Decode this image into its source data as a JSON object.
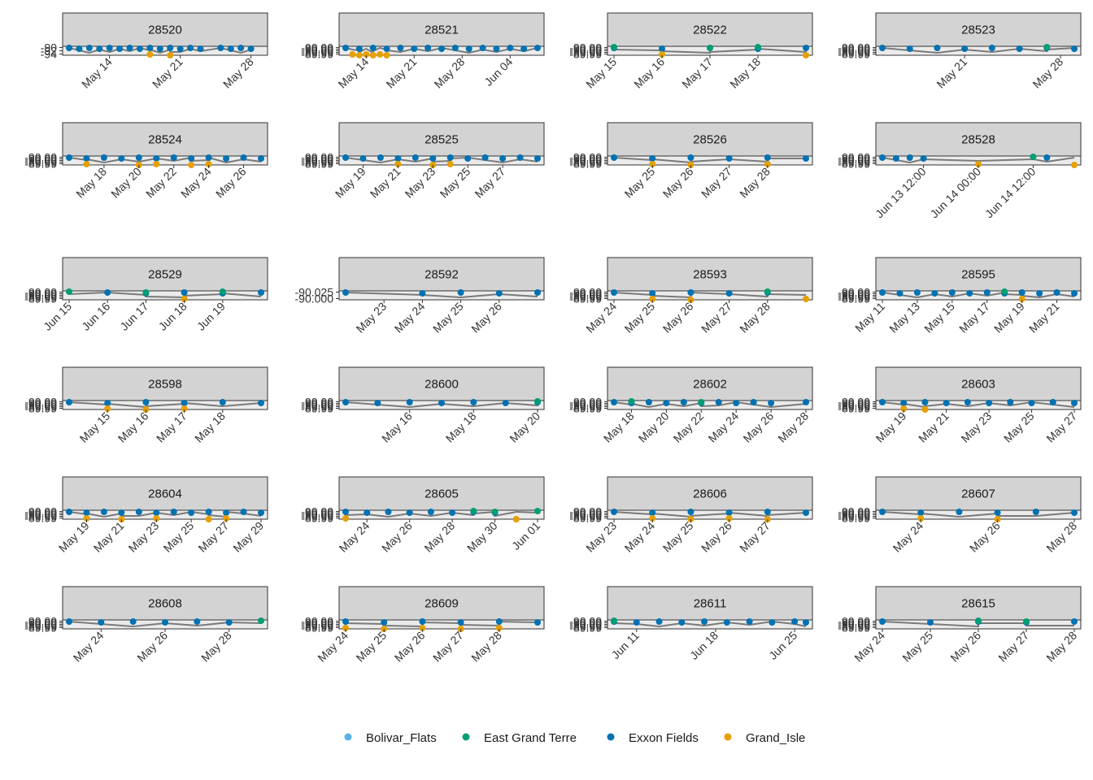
{
  "chart_data": {
    "type": "line",
    "layout": "facet_wrap",
    "y_tick_labels": [
      "-90.00",
      "-90.00",
      "-90.00",
      "-89.99",
      "-89.99"
    ],
    "colors": {
      "Bolivar_Flats": "#56B4E9",
      "East Grand Terre": "#009E73",
      "Exxon Fields": "#0072B2",
      "Grand_Isle": "#E69F00",
      "path": "#666666",
      "strip_bg": "#d3d3d3",
      "panel_bg": "#ebebeb"
    },
    "legend": {
      "position": "bottom",
      "entries": [
        "Bolivar_Flats",
        "East Grand Terre",
        "Exxon Fields",
        "Grand_Isle"
      ]
    },
    "panels": [
      {
        "id": "28520",
        "xlim": [
          "May 10",
          "May 29"
        ],
        "x_ticks": [
          "May 14",
          "May 21",
          "May 28"
        ],
        "y_ticks": [
          "-90",
          "-92",
          "-94"
        ],
        "series": [
          {
            "site": "Exxon Fields",
            "x": [
              "May 10",
              "May 11",
              "May 12",
              "May 13",
              "May 14",
              "May 15",
              "May 16",
              "May 17",
              "May 18",
              "May 19",
              "May 20",
              "May 21",
              "May 22",
              "May 23",
              "May 25",
              "May 26",
              "May 27",
              "May 28"
            ]
          },
          {
            "site": "Grand_Isle",
            "x": [
              "May 18",
              "May 20"
            ]
          }
        ]
      },
      {
        "id": "28521",
        "xlim": [
          "May 11",
          "Jun 08"
        ],
        "x_ticks": [
          "May 14",
          "May 21",
          "May 28",
          "Jun 04"
        ],
        "series": [
          {
            "site": "Exxon Fields",
            "x": [
              "May 11",
              "May 13",
              "May 15",
              "May 17",
              "May 19",
              "May 21",
              "May 23",
              "May 25",
              "May 27",
              "May 29",
              "May 31",
              "Jun 02",
              "Jun 04",
              "Jun 06",
              "Jun 08"
            ]
          },
          {
            "site": "Grand_Isle",
            "x": [
              "May 12",
              "May 13",
              "May 14",
              "May 15",
              "May 16",
              "May 17"
            ]
          }
        ]
      },
      {
        "id": "28522",
        "xlim": [
          "May 15",
          "May 19"
        ],
        "x_ticks": [
          "May 15",
          "May 16",
          "May 17",
          "May 18"
        ],
        "series": [
          {
            "site": "Exxon Fields",
            "x": [
              "May 15",
              "May 16",
              "May 17",
              "May 18",
              "May 19"
            ]
          },
          {
            "site": "East Grand Terre",
            "x": [
              "May 15",
              "May 17",
              "May 18"
            ]
          },
          {
            "site": "Grand_Isle",
            "x": [
              "May 16",
              "May 19"
            ]
          }
        ]
      },
      {
        "id": "28523",
        "xlim": [
          "May 15",
          "May 29"
        ],
        "x_ticks": [
          "May 21",
          "May 28"
        ],
        "series": [
          {
            "site": "Exxon Fields",
            "x": [
              "May 15",
              "May 17",
              "May 19",
              "May 21",
              "May 23",
              "May 25",
              "May 27",
              "May 29"
            ]
          },
          {
            "site": "East Grand Terre",
            "x": [
              "May 27"
            ]
          }
        ]
      },
      {
        "id": "28524",
        "xlim": [
          "May 16",
          "May 27"
        ],
        "x_ticks": [
          "May 18",
          "May 20",
          "May 22",
          "May 24",
          "May 26"
        ],
        "series": [
          {
            "site": "Exxon Fields",
            "x": [
              "May 16",
              "May 17",
              "May 18",
              "May 19",
              "May 20",
              "May 21",
              "May 22",
              "May 23",
              "May 24",
              "May 25",
              "May 26",
              "May 27"
            ]
          },
          {
            "site": "Grand_Isle",
            "x": [
              "May 17",
              "May 20",
              "May 21",
              "May 23",
              "May 24"
            ]
          }
        ]
      },
      {
        "id": "28525",
        "xlim": [
          "May 18",
          "May 29"
        ],
        "x_ticks": [
          "May 19",
          "May 21",
          "May 23",
          "May 25",
          "May 27"
        ],
        "series": [
          {
            "site": "Exxon Fields",
            "x": [
              "May 18",
              "May 19",
              "May 20",
              "May 21",
              "May 22",
              "May 23",
              "May 24",
              "May 25",
              "May 26",
              "May 27",
              "May 28",
              "May 29"
            ]
          },
          {
            "site": "Grand_Isle",
            "x": [
              "May 21",
              "May 23",
              "May 24"
            ]
          }
        ]
      },
      {
        "id": "28526",
        "xlim": [
          "May 24",
          "May 29"
        ],
        "x_ticks": [
          "May 25",
          "May 26",
          "May 27",
          "May 28"
        ],
        "series": [
          {
            "site": "Exxon Fields",
            "x": [
              "May 24",
              "May 25",
              "May 26",
              "May 27",
              "May 28",
              "May 29"
            ]
          },
          {
            "site": "Grand_Isle",
            "x": [
              "May 25",
              "May 26",
              "May 28"
            ]
          }
        ]
      },
      {
        "id": "28528",
        "xlim": [
          "Jun 13 03:00",
          "Jun 14 21:00"
        ],
        "x_ticks": [
          "Jun 13 12:00",
          "Jun 14 00:00",
          "Jun 14 12:00"
        ],
        "series": [
          {
            "site": "Exxon Fields",
            "x": [
              "Jun 13 03:00",
              "Jun 13 06:00",
              "Jun 13 09:00",
              "Jun 13 12:00",
              "Jun 14 15:00"
            ]
          },
          {
            "site": "East Grand Terre",
            "x": [
              "Jun 14 12:00"
            ]
          },
          {
            "site": "Grand_Isle",
            "x": [
              "Jun 14 00:00",
              "Jun 14 21:00"
            ]
          }
        ]
      },
      {
        "id": "28529",
        "xlim": [
          "Jun 15",
          "Jun 20"
        ],
        "x_ticks": [
          "Jun 15",
          "Jun 16",
          "Jun 17",
          "Jun 18",
          "Jun 19"
        ],
        "series": [
          {
            "site": "Exxon Fields",
            "x": [
              "Jun 16",
              "Jun 17",
              "Jun 18",
              "Jun 19",
              "Jun 20"
            ]
          },
          {
            "site": "East Grand Terre",
            "x": [
              "Jun 15",
              "Jun 17",
              "Jun 19"
            ]
          },
          {
            "site": "Grand_Isle",
            "x": [
              "Jun 18"
            ]
          }
        ]
      },
      {
        "id": "28592",
        "xlim": [
          "May 22",
          "May 27"
        ],
        "x_ticks": [
          "May 23",
          "May 24",
          "May 25",
          "May 26"
        ],
        "y_ticks": [
          "-90.025",
          "-90.000"
        ],
        "series": [
          {
            "site": "Exxon Fields",
            "x": [
              "May 22",
              "May 24",
              "May 25",
              "May 26",
              "May 27"
            ]
          }
        ]
      },
      {
        "id": "28593",
        "xlim": [
          "May 24",
          "May 29"
        ],
        "x_ticks": [
          "May 24",
          "May 25",
          "May 26",
          "May 27",
          "May 28"
        ],
        "series": [
          {
            "site": "Exxon Fields",
            "x": [
              "May 24",
              "May 25",
              "May 26",
              "May 27",
              "May 28"
            ]
          },
          {
            "site": "East Grand Terre",
            "x": [
              "May 28"
            ]
          },
          {
            "site": "Grand_Isle",
            "x": [
              "May 25",
              "May 26",
              "May 29"
            ]
          }
        ]
      },
      {
        "id": "28595",
        "xlim": [
          "May 11",
          "May 22"
        ],
        "x_ticks": [
          "May 11",
          "May 13",
          "May 15",
          "May 17",
          "May 19",
          "May 21"
        ],
        "series": [
          {
            "site": "Exxon Fields",
            "x": [
              "May 11",
              "May 12",
              "May 13",
              "May 14",
              "May 15",
              "May 16",
              "May 17",
              "May 18",
              "May 19",
              "May 20",
              "May 21",
              "May 22"
            ]
          },
          {
            "site": "East Grand Terre",
            "x": [
              "May 18"
            ]
          },
          {
            "site": "Grand_Isle",
            "x": [
              "May 19"
            ]
          }
        ]
      },
      {
        "id": "28598",
        "xlim": [
          "May 14",
          "May 19"
        ],
        "x_ticks": [
          "May 15",
          "May 16",
          "May 17",
          "May 18"
        ],
        "series": [
          {
            "site": "Exxon Fields",
            "x": [
              "May 14",
              "May 15",
              "May 16",
              "May 17",
              "May 18",
              "May 19"
            ]
          },
          {
            "site": "Grand_Isle",
            "x": [
              "May 15",
              "May 16",
              "May 17"
            ]
          }
        ]
      },
      {
        "id": "28600",
        "xlim": [
          "May 14",
          "May 20"
        ],
        "x_ticks": [
          "May 16",
          "May 18",
          "May 20"
        ],
        "series": [
          {
            "site": "Exxon Fields",
            "x": [
              "May 14",
              "May 15",
              "May 16",
              "May 17",
              "May 18",
              "May 19",
              "May 20"
            ]
          },
          {
            "site": "East Grand Terre",
            "x": [
              "May 20"
            ]
          }
        ]
      },
      {
        "id": "28602",
        "xlim": [
          "May 17",
          "May 28"
        ],
        "x_ticks": [
          "May 18",
          "May 20",
          "May 22",
          "May 24",
          "May 26",
          "May 28"
        ],
        "series": [
          {
            "site": "Exxon Fields",
            "x": [
              "May 17",
              "May 18",
              "May 19",
              "May 20",
              "May 21",
              "May 22",
              "May 23",
              "May 24",
              "May 25",
              "May 26",
              "May 28"
            ]
          },
          {
            "site": "East Grand Terre",
            "x": [
              "May 18",
              "May 22"
            ]
          }
        ]
      },
      {
        "id": "28603",
        "xlim": [
          "May 18",
          "May 27"
        ],
        "x_ticks": [
          "May 19",
          "May 21",
          "May 23",
          "May 25",
          "May 27"
        ],
        "series": [
          {
            "site": "Exxon Fields",
            "x": [
              "May 18",
              "May 19",
              "May 20",
              "May 21",
              "May 22",
              "May 23",
              "May 24",
              "May 25",
              "May 26",
              "May 27"
            ]
          },
          {
            "site": "Grand_Isle",
            "x": [
              "May 19",
              "May 20"
            ]
          }
        ]
      },
      {
        "id": "28604",
        "xlim": [
          "May 18",
          "May 29"
        ],
        "x_ticks": [
          "May 19",
          "May 21",
          "May 23",
          "May 25",
          "May 27",
          "May 29"
        ],
        "series": [
          {
            "site": "Exxon Fields",
            "x": [
              "May 18",
              "May 19",
              "May 20",
              "May 21",
              "May 22",
              "May 23",
              "May 24",
              "May 25",
              "May 26",
              "May 27",
              "May 28",
              "May 29"
            ]
          },
          {
            "site": "Grand_Isle",
            "x": [
              "May 19",
              "May 21",
              "May 23",
              "May 26",
              "May 27"
            ]
          }
        ]
      },
      {
        "id": "28605",
        "xlim": [
          "May 23",
          "Jun 01"
        ],
        "x_ticks": [
          "May 24",
          "May 26",
          "May 28",
          "May 30",
          "Jun 01"
        ],
        "series": [
          {
            "site": "Exxon Fields",
            "x": [
              "May 23",
              "May 24",
              "May 25",
              "May 26",
              "May 27",
              "May 28",
              "May 29",
              "May 30"
            ]
          },
          {
            "site": "East Grand Terre",
            "x": [
              "May 29",
              "May 30",
              "Jun 01"
            ]
          },
          {
            "site": "Grand_Isle",
            "x": [
              "May 23",
              "May 31"
            ]
          }
        ]
      },
      {
        "id": "28606",
        "xlim": [
          "May 23",
          "May 28"
        ],
        "x_ticks": [
          "May 23",
          "May 24",
          "May 25",
          "May 26",
          "May 27"
        ],
        "series": [
          {
            "site": "Exxon Fields",
            "x": [
              "May 23",
              "May 24",
              "May 25",
              "May 26",
              "May 27",
              "May 28"
            ]
          },
          {
            "site": "Grand_Isle",
            "x": [
              "May 24",
              "May 25",
              "May 26",
              "May 27"
            ]
          }
        ]
      },
      {
        "id": "28607",
        "xlim": [
          "May 23",
          "May 28"
        ],
        "x_ticks": [
          "May 24",
          "May 26",
          "May 28"
        ],
        "series": [
          {
            "site": "Exxon Fields",
            "x": [
              "May 23",
              "May 24",
              "May 25",
              "May 26",
              "May 27",
              "May 28"
            ]
          },
          {
            "site": "Grand_Isle",
            "x": [
              "May 24",
              "May 26"
            ]
          }
        ]
      },
      {
        "id": "28608",
        "xlim": [
          "May 23",
          "May 29"
        ],
        "x_ticks": [
          "May 24",
          "May 26",
          "May 28"
        ],
        "series": [
          {
            "site": "Exxon Fields",
            "x": [
              "May 23",
              "May 24",
              "May 25",
              "May 26",
              "May 27",
              "May 28"
            ]
          },
          {
            "site": "East Grand Terre",
            "x": [
              "May 29"
            ]
          }
        ]
      },
      {
        "id": "28609",
        "xlim": [
          "May 24",
          "May 29"
        ],
        "x_ticks": [
          "May 24",
          "May 25",
          "May 26",
          "May 27",
          "May 28"
        ],
        "series": [
          {
            "site": "Exxon Fields",
            "x": [
              "May 24",
              "May 25",
              "May 26",
              "May 27",
              "May 28",
              "May 29"
            ]
          },
          {
            "site": "Grand_Isle",
            "x": [
              "May 24",
              "May 25",
              "May 26",
              "May 27",
              "May 28"
            ]
          }
        ]
      },
      {
        "id": "28611",
        "xlim": [
          "Jun 09",
          "Jun 26"
        ],
        "x_ticks": [
          "Jun 11",
          "Jun 18",
          "Jun 25"
        ],
        "series": [
          {
            "site": "Exxon Fields",
            "x": [
              "Jun 09",
              "Jun 11",
              "Jun 13",
              "Jun 15",
              "Jun 17",
              "Jun 19",
              "Jun 21",
              "Jun 23",
              "Jun 25",
              "Jun 26"
            ]
          },
          {
            "site": "East Grand Terre",
            "x": [
              "Jun 09"
            ]
          }
        ]
      },
      {
        "id": "28615",
        "xlim": [
          "May 24",
          "May 28"
        ],
        "x_ticks": [
          "May 24",
          "May 25",
          "May 26",
          "May 27",
          "May 28"
        ],
        "series": [
          {
            "site": "Exxon Fields",
            "x": [
              "May 24",
              "May 25",
              "May 26",
              "May 27",
              "May 28"
            ]
          },
          {
            "site": "East Grand Terre",
            "x": [
              "May 26",
              "May 27"
            ]
          }
        ]
      }
    ]
  }
}
